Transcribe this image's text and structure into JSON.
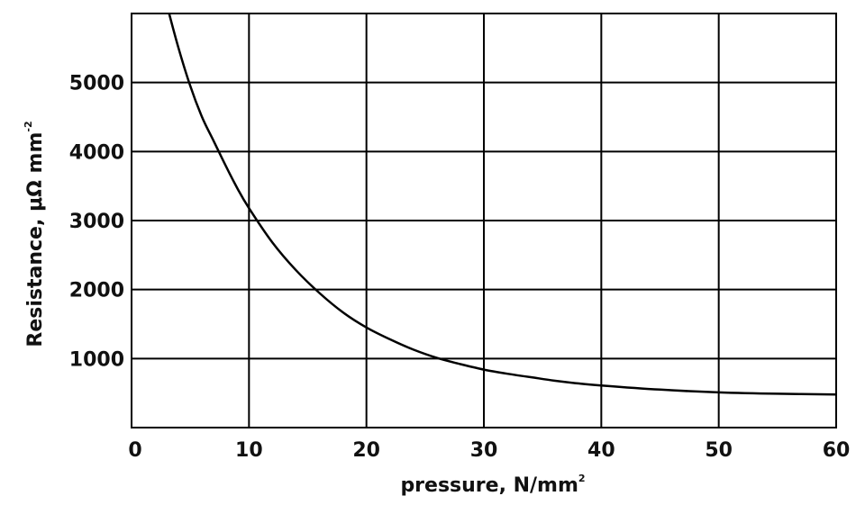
{
  "chart_data": {
    "type": "line",
    "xlabel": "pressure, N/mm",
    "xlabel_superscript": "2",
    "ylabel": "Resistance, μΩ mm",
    "ylabel_superscript": "-2",
    "xlim": [
      0,
      60
    ],
    "ylim": [
      0,
      6000
    ],
    "x_ticks": [
      0,
      10,
      20,
      30,
      40,
      50,
      60
    ],
    "y_ticks": [
      1000,
      2000,
      3000,
      4000,
      5000
    ],
    "grid": true,
    "colors": {
      "line": "#000000",
      "grid": "#000000"
    },
    "series": [
      {
        "x": [
          3.2,
          4,
          5,
          6,
          7,
          8,
          9,
          10,
          12,
          14,
          16,
          18,
          20,
          22,
          24,
          26,
          28,
          30,
          32,
          34,
          36,
          38,
          40,
          45,
          50,
          55,
          60
        ],
        "y": [
          6000,
          5500,
          4950,
          4500,
          4150,
          3800,
          3470,
          3180,
          2680,
          2280,
          1950,
          1670,
          1450,
          1280,
          1130,
          1010,
          920,
          840,
          780,
          730,
          680,
          640,
          610,
          550,
          510,
          490,
          480
        ]
      }
    ]
  }
}
